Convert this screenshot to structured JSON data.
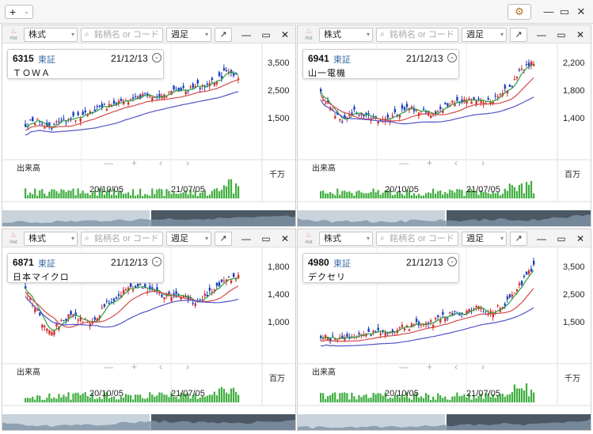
{
  "toolbar": {
    "add_label": "+",
    "add_caret": "⌄",
    "gear_icon": "gear-icon",
    "minimize": "—",
    "maximize": "▭",
    "close": "✕"
  },
  "panel_common": {
    "type_select": "株式",
    "search_placeholder": "銘柄名 or コード",
    "period_select": "週足",
    "expand": "↗",
    "minimize": "—",
    "maximize": "▭",
    "close": "✕",
    "hot": "Hot",
    "volume_label": "出来高",
    "nav": {
      "minus": "—",
      "plus": "+",
      "prev": "‹",
      "next": "›"
    },
    "x_labels": [
      "20/10/05",
      "21/07/05"
    ]
  },
  "panels": [
    {
      "code": "6315",
      "exchange": "東証",
      "date": "21/12/13",
      "name": "ＴＯＷＡ",
      "y_ticks": [
        "3,500",
        "2,500",
        "1,500"
      ],
      "volume_unit": "千万"
    },
    {
      "code": "6941",
      "exchange": "東証",
      "date": "21/12/13",
      "name": "山一電機",
      "y_ticks": [
        "2,200",
        "1,800",
        "1,400"
      ],
      "volume_unit": "百万"
    },
    {
      "code": "6871",
      "exchange": "東証",
      "date": "21/12/13",
      "name": "日本マイクロ",
      "y_ticks": [
        "1,800",
        "1,400",
        "1,000"
      ],
      "volume_unit": "百万"
    },
    {
      "code": "4980",
      "exchange": "東証",
      "date": "21/12/13",
      "name": "デクセリ",
      "y_ticks": [
        "3,500",
        "2,500",
        "1,500"
      ],
      "volume_unit": "千万"
    }
  ],
  "colors": {
    "up": "#d32f2f",
    "down": "#1a3fbf",
    "ma_short": "#2e9e3e",
    "ma_mid": "#d34a4a",
    "ma_long": "#5353c8",
    "volume": "#3fae3f"
  }
}
